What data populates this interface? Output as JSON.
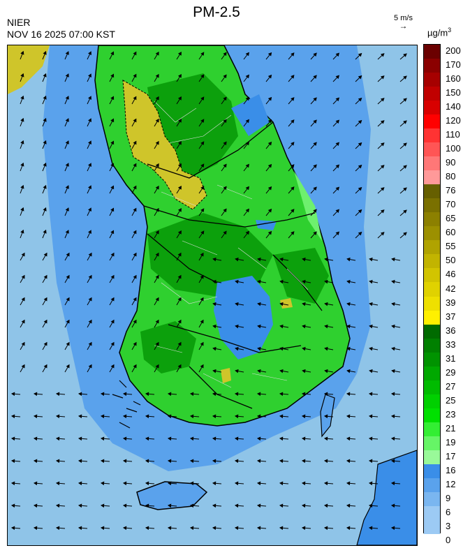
{
  "header": {
    "org": "NIER",
    "timestamp": "NOV 16 2025 07:00 KST",
    "title": "PM-2.5",
    "wind_reference": "5 m/s",
    "unit": "µg/m",
    "unit_sup": "3"
  },
  "legend": {
    "labels": [
      "200",
      "170",
      "160",
      "150",
      "140",
      "120",
      "110",
      "100",
      "90",
      "80",
      "76",
      "70",
      "65",
      "60",
      "55",
      "50",
      "46",
      "42",
      "39",
      "37",
      "36",
      "33",
      "31",
      "29",
      "27",
      "25",
      "23",
      "21",
      "19",
      "17",
      "16",
      "12",
      "9",
      "6",
      "3",
      "0"
    ],
    "colors": [
      "#6b0000",
      "#8b0000",
      "#a60000",
      "#c00000",
      "#d80000",
      "#ff0000",
      "#ff3333",
      "#ff5555",
      "#ff7777",
      "#ff9999",
      "#665f00",
      "#7a7000",
      "#8c8000",
      "#9c9000",
      "#b0a300",
      "#c2b400",
      "#d2c400",
      "#e0d200",
      "#eee000",
      "#fff000",
      "#006b00",
      "#008000",
      "#009300",
      "#00a800",
      "#00bb00",
      "#00d000",
      "#00e000",
      "#33ee33",
      "#66f566",
      "#99f999",
      "#3a8ee8",
      "#5aa2ec",
      "#7ab6f0",
      "#9ccaf4",
      "#9ccaf4"
    ]
  },
  "map": {
    "colors": {
      "sea": "#8fc4e8",
      "low_blue": "#5aa2ec",
      "mid_blue": "#3a8ee8",
      "light_green": "#4ee04e",
      "green": "#1fc41f",
      "dark_green": "#0a9e0a",
      "yellow": "#cfc52a",
      "olive": "#b8b020"
    }
  }
}
